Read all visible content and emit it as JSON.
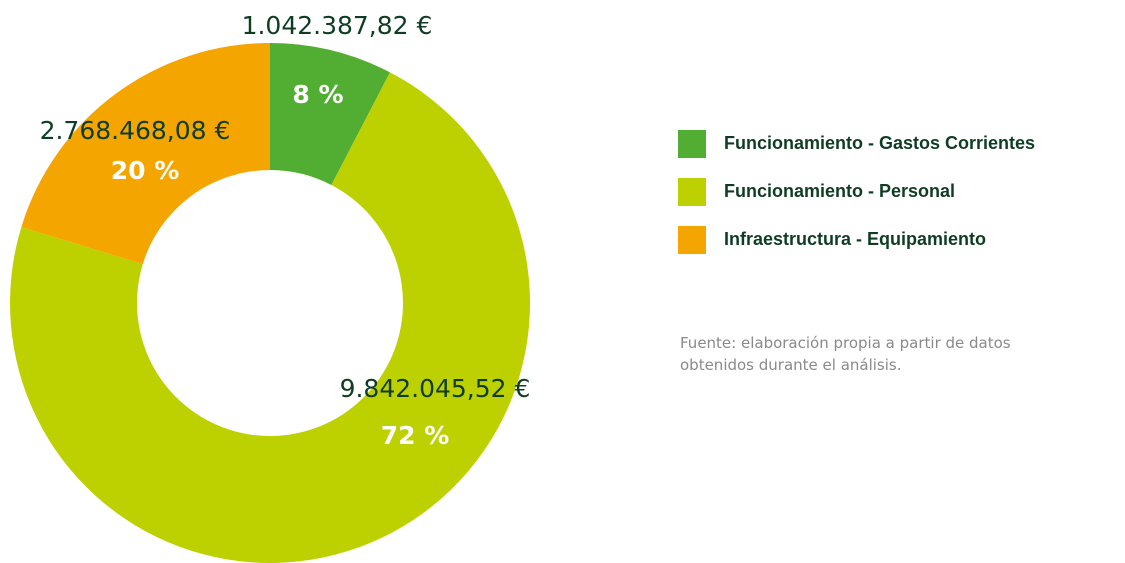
{
  "chart_data": {
    "type": "donut",
    "categories": [
      "Funcionamiento - Gastos Corrientes",
      "Funcionamiento - Personal",
      "Infraestructura - Equipamiento"
    ],
    "values": [
      1042387.82,
      9842045.52,
      2768468.08
    ],
    "value_labels": [
      "1.042.387,82 €",
      "9.842.045,52 €",
      "2.768.468,08 €"
    ],
    "shares": [
      8,
      72,
      20
    ],
    "share_labels": [
      "8 %",
      "72 %",
      "20 %"
    ],
    "colors": [
      "#52ae32",
      "#bdd000",
      "#f5a500"
    ],
    "legend": "right",
    "source": "Fuente: elaboración propia a partir de datos obtenidos durante el análisis."
  }
}
